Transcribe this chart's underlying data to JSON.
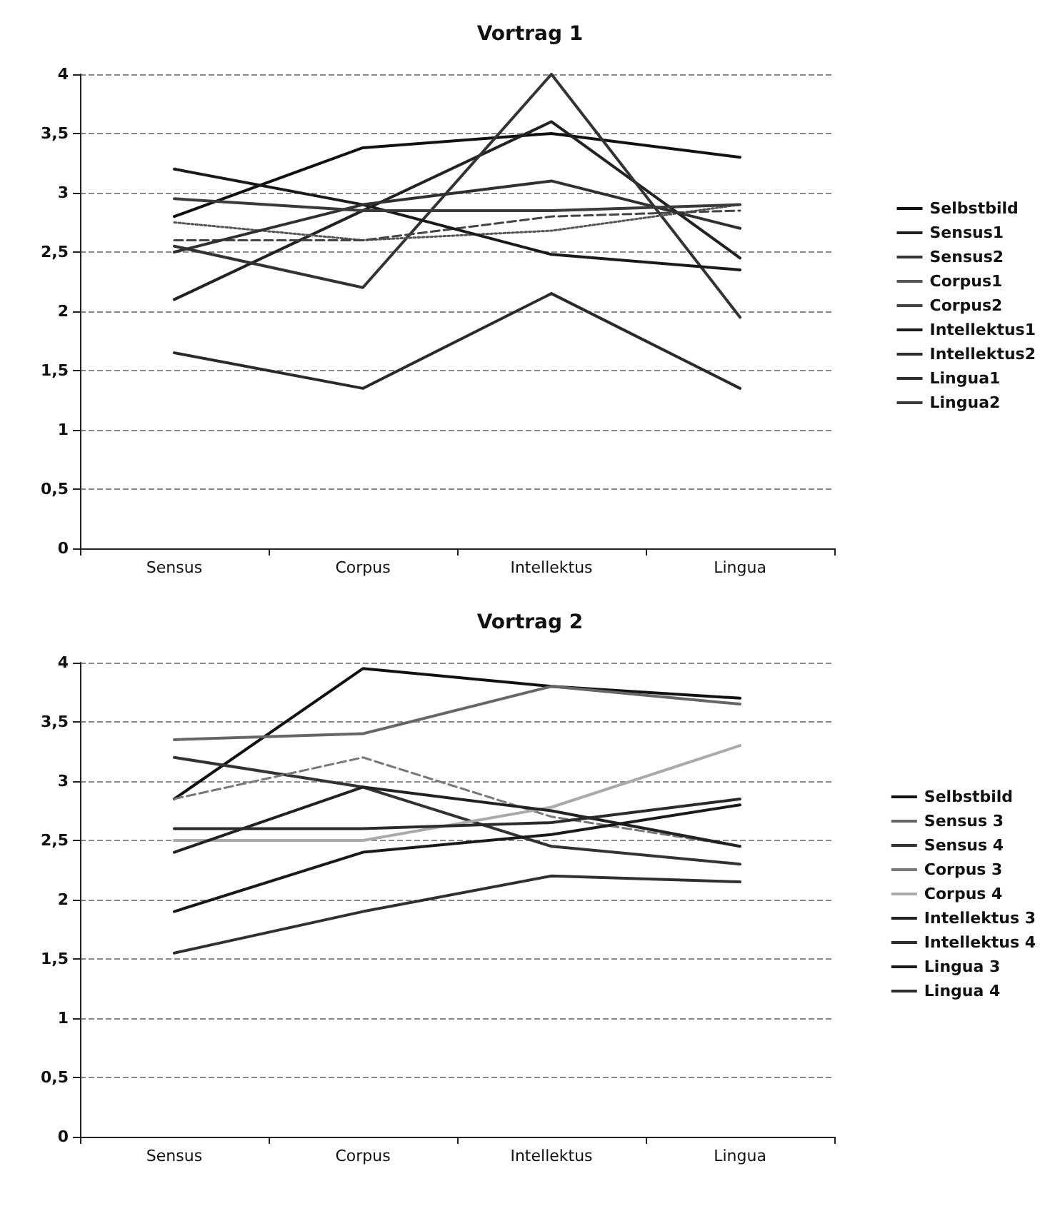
{
  "chart_data": [
    {
      "type": "line",
      "title": "Vortrag 1",
      "categories": [
        "Sensus",
        "Corpus",
        "Intellektus",
        "Lingua"
      ],
      "ylim": [
        0,
        4
      ],
      "yticks": [
        0,
        {
          "value": 0.5,
          "label": "0,5"
        },
        1,
        {
          "value": 1.5,
          "label": "1,5"
        },
        2,
        {
          "value": 2.5,
          "label": "2,5"
        },
        3,
        {
          "value": 3.5,
          "label": "3,5"
        },
        4
      ],
      "grid": "y",
      "legend": "right",
      "marker": "none",
      "series": [
        {
          "name": "Selbstbild",
          "color": "#111111",
          "values": [
            2.8,
            3.38,
            3.5,
            3.3
          ]
        },
        {
          "name": "Sensus1",
          "color": "#222222",
          "values": [
            2.1,
            2.85,
            3.6,
            2.45
          ]
        },
        {
          "name": "Sensus2",
          "color": "#333333",
          "values": [
            2.55,
            2.2,
            4,
            1.95
          ]
        },
        {
          "name": "Corpus1",
          "color": "#555555",
          "line_style": "dotted",
          "values": [
            2.75,
            2.6,
            2.68,
            2.9
          ]
        },
        {
          "name": "Corpus2",
          "color": "#444444",
          "line_style": "dashed",
          "values": [
            2.6,
            2.6,
            2.8,
            2.85
          ]
        },
        {
          "name": "Intellektus1",
          "color": "#1a1a1a",
          "values": [
            3.2,
            2.9,
            2.48,
            2.35
          ]
        },
        {
          "name": "Intellektus2",
          "color": "#2a2a2a",
          "values": [
            1.65,
            1.35,
            2.15,
            1.35
          ]
        },
        {
          "name": "Lingua1",
          "color": "#303030",
          "values": [
            2.5,
            2.9,
            3.1,
            2.7
          ]
        },
        {
          "name": "Lingua2",
          "color": "#3a3a3a",
          "values": [
            2.95,
            2.85,
            2.85,
            2.9
          ]
        }
      ]
    },
    {
      "type": "line",
      "title": "Vortrag 2",
      "categories": [
        "Sensus",
        "Corpus",
        "Intellektus",
        "Lingua"
      ],
      "ylim": [
        0,
        4
      ],
      "yticks": [
        0,
        {
          "value": 0.5,
          "label": "0,5"
        },
        1,
        {
          "value": 1.5,
          "label": "1,5"
        },
        2,
        {
          "value": 2.5,
          "label": "2,5"
        },
        3,
        {
          "value": 3.5,
          "label": "3,5"
        },
        4
      ],
      "grid": "y",
      "legend": "right",
      "marker": "none",
      "series": [
        {
          "name": "Selbstbild",
          "color": "#111111",
          "values": [
            2.85,
            3.95,
            3.8,
            3.7
          ]
        },
        {
          "name": "Sensus 3",
          "color": "#666666",
          "values": [
            3.35,
            3.4,
            3.8,
            3.65
          ]
        },
        {
          "name": "Sensus 4",
          "color": "#333333",
          "values": [
            3.2,
            2.95,
            2.45,
            2.3
          ]
        },
        {
          "name": "Corpus 3",
          "color": "#777777",
          "line_style": "dashed",
          "values": [
            2.85,
            3.2,
            2.7,
            2.45
          ]
        },
        {
          "name": "Corpus 4",
          "color": "#aaaaaa",
          "values": [
            2.5,
            2.5,
            2.78,
            3.3
          ]
        },
        {
          "name": "Intellektus 3",
          "color": "#222222",
          "values": [
            2.4,
            2.95,
            2.75,
            2.45
          ]
        },
        {
          "name": "Intellektus 4",
          "color": "#2a2a2a",
          "values": [
            2.6,
            2.6,
            2.65,
            2.85
          ]
        },
        {
          "name": "Lingua 3",
          "color": "#1a1a1a",
          "values": [
            1.9,
            2.4,
            2.55,
            2.8
          ]
        },
        {
          "name": "Lingua 4",
          "color": "#303030",
          "values": [
            1.55,
            1.9,
            2.2,
            2.15
          ]
        }
      ]
    }
  ]
}
